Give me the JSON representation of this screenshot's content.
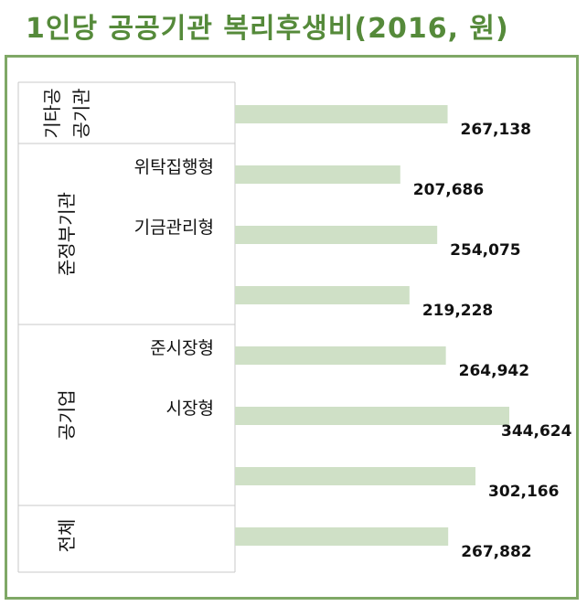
{
  "title": "1인당 공공기관 복리후생비(2016, 원)",
  "chart_data": {
    "type": "bar",
    "orientation": "horizontal",
    "title": "1인당 공공기관 복리후생비(2016, 원)",
    "xlim": [
      0,
      400000
    ],
    "color": "#cfe0c6",
    "groups": [
      {
        "label": "기타공공기관",
        "label_lines": [
          "기타공",
          "공기관"
        ],
        "rows": [
          {
            "sub": "",
            "value": 267138,
            "label": "267,138"
          }
        ]
      },
      {
        "label": "준정부기관",
        "label_lines": [
          "준정부기관"
        ],
        "rows": [
          {
            "sub": "위탁집행형",
            "value": 207686,
            "label": "207,686"
          },
          {
            "sub": "기금관리형",
            "value": 254075,
            "label": "254,075"
          },
          {
            "sub": "",
            "value": 219228,
            "label": "219,228"
          }
        ]
      },
      {
        "label": "공기업",
        "label_lines": [
          "공기업"
        ],
        "rows": [
          {
            "sub": "준시장형",
            "value": 264942,
            "label": "264,942"
          },
          {
            "sub": "시장형",
            "value": 344624,
            "label": "344,624"
          },
          {
            "sub": "",
            "value": 302166,
            "label": "302,166"
          }
        ]
      },
      {
        "label": "전체",
        "label_lines": [
          "전체"
        ],
        "rows": [
          {
            "sub": "",
            "value": 267882,
            "label": "267,882"
          }
        ]
      }
    ]
  }
}
